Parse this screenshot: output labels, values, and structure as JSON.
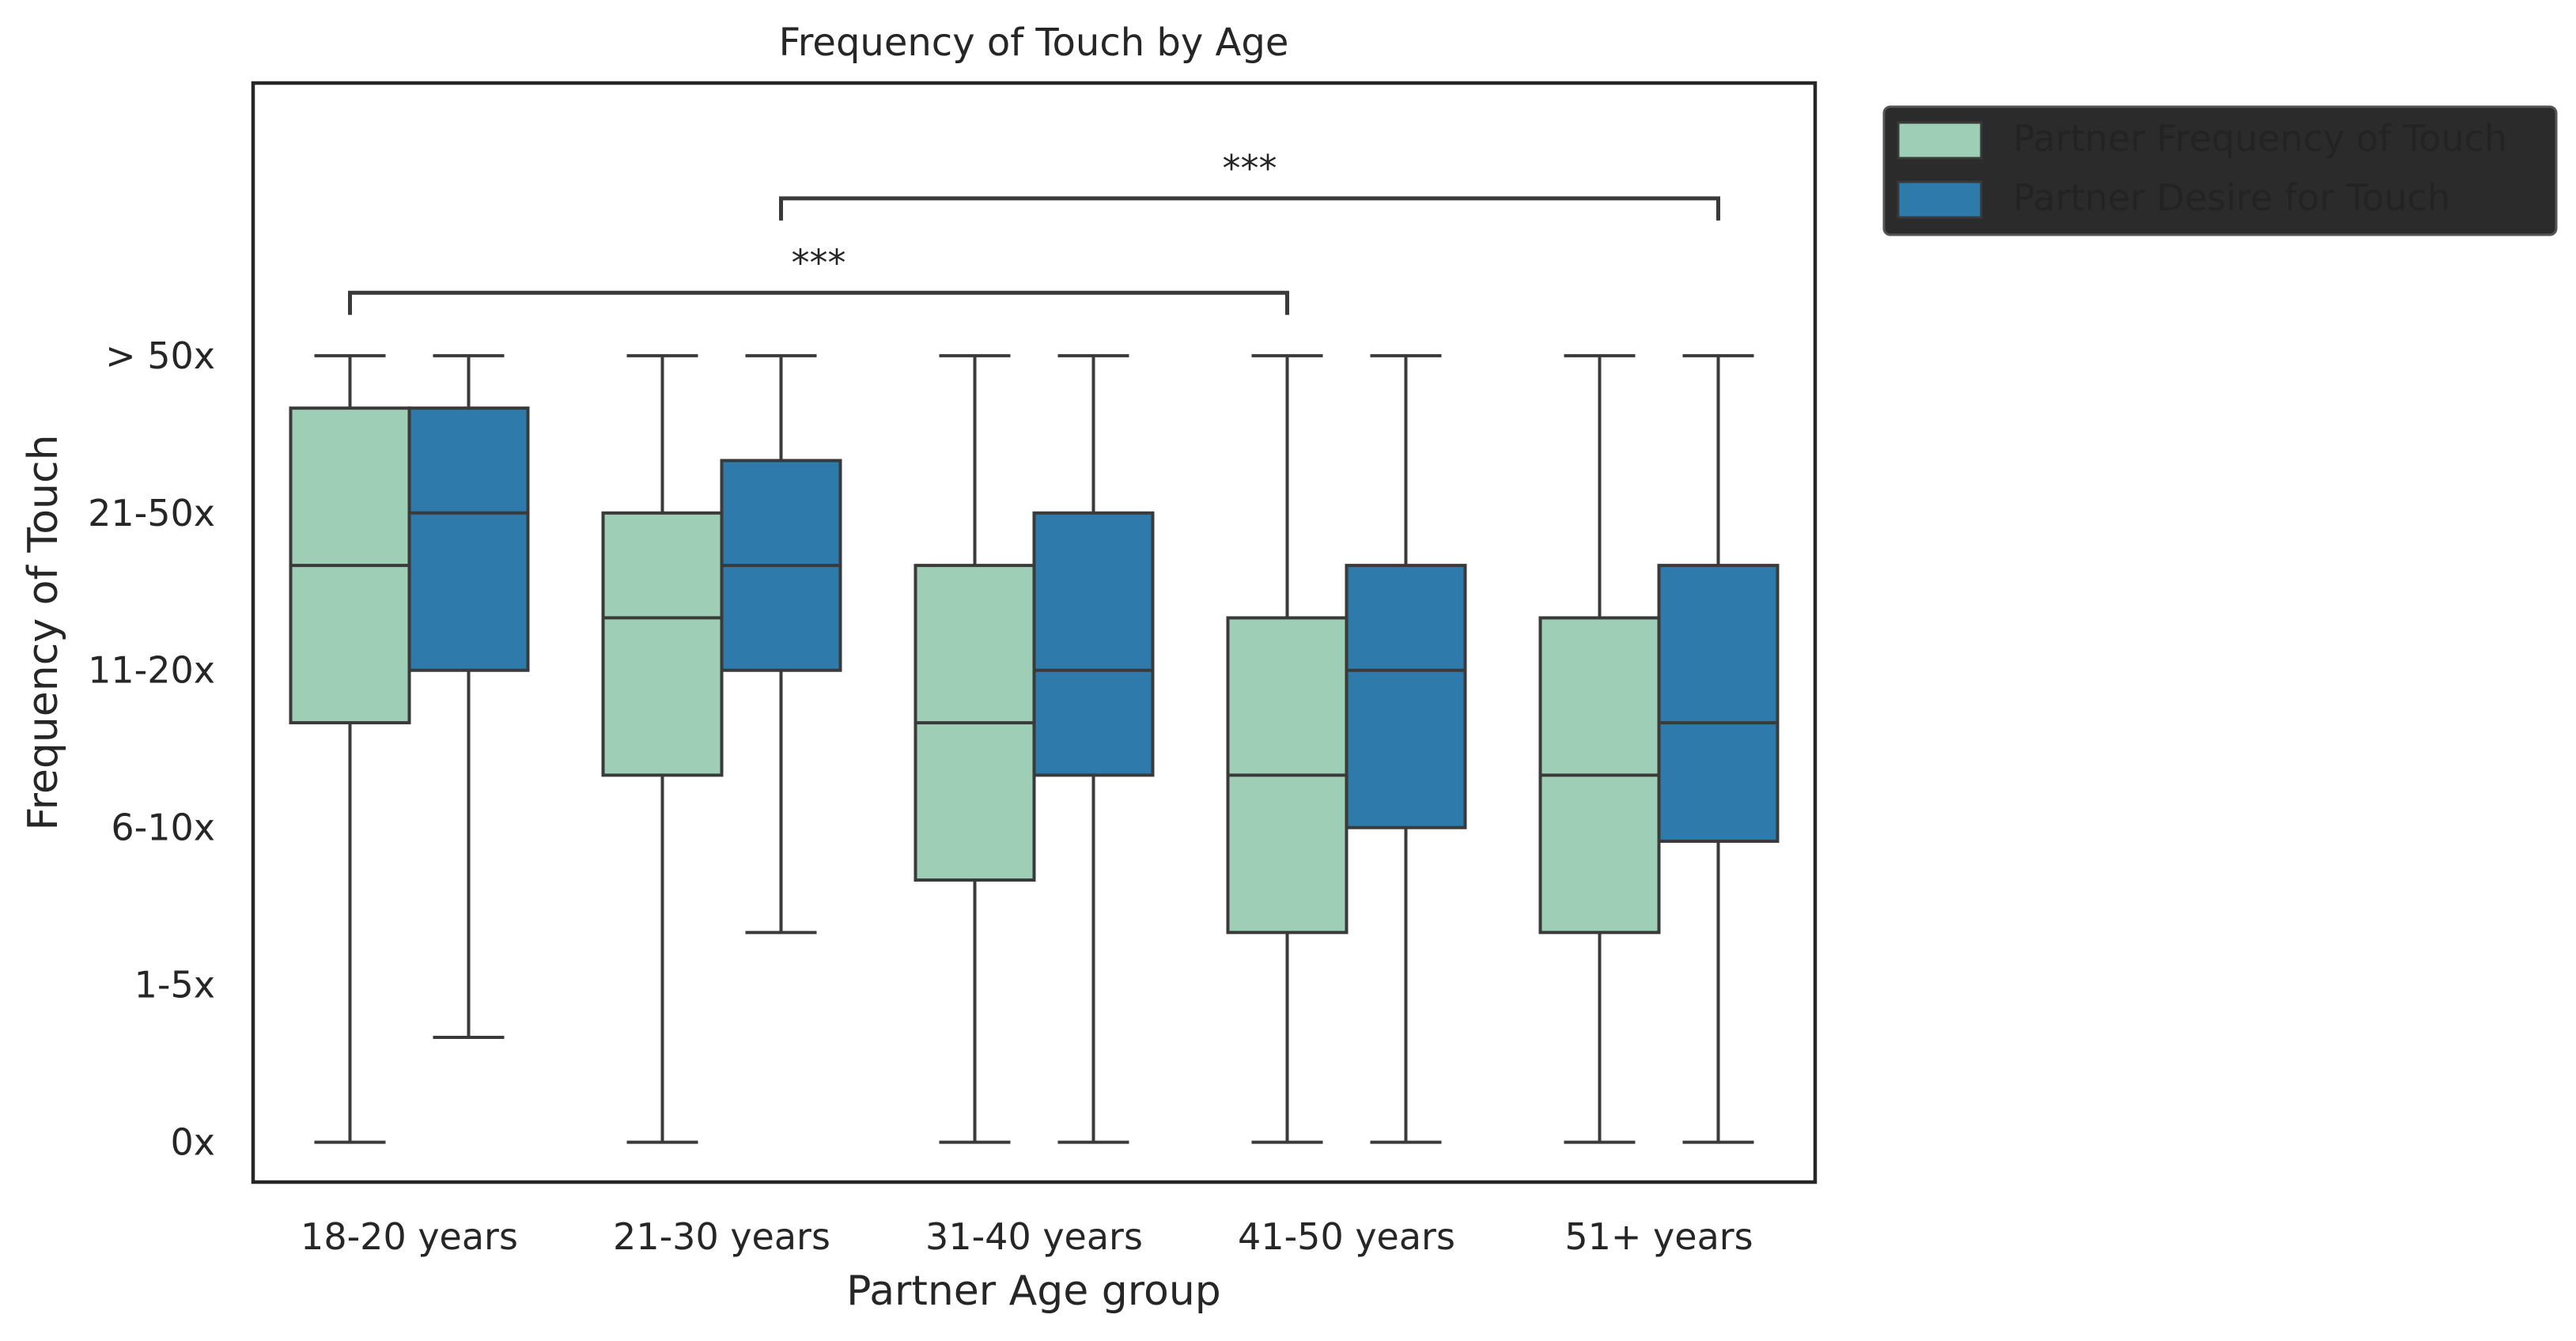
{
  "chart_data": {
    "type": "box",
    "title": "Frequency of Touch by Age",
    "xlabel": "Partner Age group",
    "ylabel": "Frequency of Touch",
    "categories": [
      "18-20 years",
      "21-30 years",
      "31-40 years",
      "41-50 years",
      "51+ years"
    ],
    "y_tick_labels": [
      "0x",
      "1-5x",
      "6-10x",
      "11-20x",
      "21-50x",
      "> 50x"
    ],
    "y_tick_values": [
      0,
      1.5,
      3,
      4.5,
      6,
      7.5
    ],
    "ylim": [
      -0.38,
      10.1
    ],
    "grid": false,
    "legend_position": "outside-top-right",
    "series": [
      {
        "name": "Partner Frequency of Touch",
        "color": "#9ecfb6",
        "boxes": [
          {
            "whisker_low": 0,
            "q1": 4.0,
            "median": 5.5,
            "q3": 7.0,
            "whisker_high": 7.5
          },
          {
            "whisker_low": 0,
            "q1": 3.5,
            "median": 5.0,
            "q3": 6.0,
            "whisker_high": 7.5
          },
          {
            "whisker_low": 0,
            "q1": 2.5,
            "median": 4.0,
            "q3": 5.5,
            "whisker_high": 7.5
          },
          {
            "whisker_low": 0,
            "q1": 2.0,
            "median": 3.5,
            "q3": 5.0,
            "whisker_high": 7.5
          },
          {
            "whisker_low": 0,
            "q1": 2.0,
            "median": 3.5,
            "q3": 5.0,
            "whisker_high": 7.5
          }
        ]
      },
      {
        "name": "Partner Desire for Touch",
        "color": "#2e7bab",
        "boxes": [
          {
            "whisker_low": 1.0,
            "q1": 4.5,
            "median": 6.0,
            "q3": 7.0,
            "whisker_high": 7.5
          },
          {
            "whisker_low": 2.0,
            "q1": 4.5,
            "median": 5.5,
            "q3": 6.5,
            "whisker_high": 7.5
          },
          {
            "whisker_low": 0,
            "q1": 3.5,
            "median": 4.5,
            "q3": 6.0,
            "whisker_high": 7.5
          },
          {
            "whisker_low": 0,
            "q1": 3.0,
            "median": 4.5,
            "q3": 5.5,
            "whisker_high": 7.5
          },
          {
            "whisker_low": 0,
            "q1": 2.87,
            "median": 4.0,
            "q3": 5.5,
            "whisker_high": 7.5
          }
        ]
      }
    ],
    "annotations": [
      {
        "text": "***",
        "from_category": 1,
        "from_series": 1,
        "to_category": 4,
        "to_series": 1,
        "y_value": 9.0
      },
      {
        "text": "***",
        "from_category": 0,
        "from_series": 0,
        "to_category": 3,
        "to_series": 0,
        "y_value": 8.1
      }
    ]
  }
}
